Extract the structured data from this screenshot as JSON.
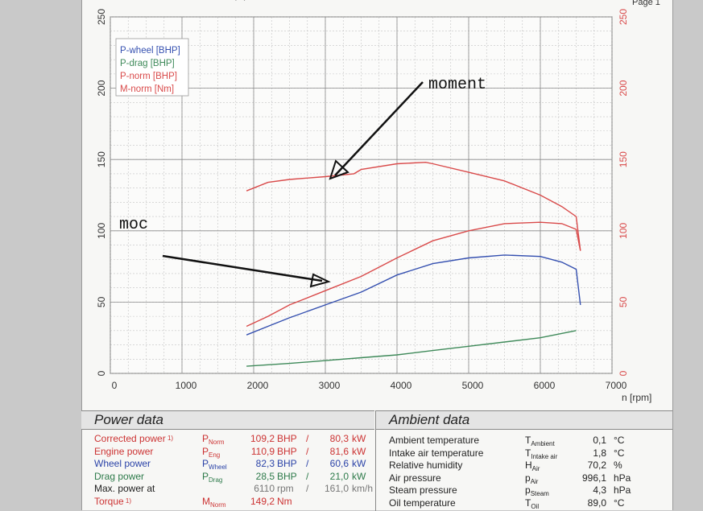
{
  "header": {
    "partial_left": "(...)",
    "partial_right": "Page 1"
  },
  "annotations": {
    "moment": "moment",
    "moc": "moc"
  },
  "chart_data": {
    "type": "line",
    "x_label": "n [rpm]",
    "x_ticks": [
      "0",
      "1000",
      "2000",
      "3000",
      "4000",
      "5000",
      "6000",
      "7000"
    ],
    "xlim": [
      0,
      7000
    ],
    "y_left_ticks": [
      "0",
      "50",
      "100",
      "150",
      "200",
      "250"
    ],
    "y_right_ticks": [
      "0",
      "50",
      "100",
      "150",
      "200",
      "250"
    ],
    "ylim": [
      0,
      250
    ],
    "grid": true,
    "legend_position": "top-left",
    "legend": [
      "P-wheel [BHP]",
      "P-drag [BHP]",
      "P-norm [BHP]",
      "M-norm [Nm]"
    ],
    "series": [
      {
        "name": "P-wheel [BHP]",
        "color": "#3550b0",
        "x": [
          1900,
          2200,
          2500,
          3000,
          3500,
          4000,
          4500,
          5000,
          5500,
          6000,
          6300,
          6500,
          6560
        ],
        "y": [
          27,
          33,
          39,
          48,
          57,
          69,
          77,
          81,
          83,
          82,
          78,
          73,
          48
        ]
      },
      {
        "name": "P-drag [BHP]",
        "color": "#3f8a5a",
        "x": [
          1900,
          2500,
          3000,
          3500,
          4000,
          4500,
          5000,
          5500,
          6000,
          6500
        ],
        "y": [
          5,
          7,
          9,
          11,
          13,
          16,
          19,
          22,
          25,
          30
        ]
      },
      {
        "name": "P-norm [BHP]",
        "color": "#d94a4a",
        "x": [
          1900,
          2200,
          2500,
          3000,
          3500,
          4000,
          4500,
          5000,
          5500,
          6000,
          6300,
          6500,
          6560
        ],
        "y": [
          33,
          40,
          48,
          58,
          68,
          81,
          93,
          100,
          105,
          106,
          105,
          101,
          86
        ]
      },
      {
        "name": "M-norm [Nm]",
        "color": "#d94a4a",
        "x": [
          1900,
          2200,
          2500,
          3000,
          3400,
          3500,
          4000,
          4400,
          4500,
          5000,
          5500,
          6000,
          6300,
          6500,
          6560
        ],
        "y": [
          128,
          134,
          136,
          138,
          140,
          143,
          147,
          148,
          147,
          141,
          135,
          125,
          117,
          110,
          86
        ]
      }
    ]
  },
  "power_data": {
    "title": "Power data",
    "rows": [
      {
        "label": "Corrected power",
        "note": "1)",
        "sym": "P",
        "sub": "Norm",
        "v1": "109,2",
        "u1": "BHP",
        "sep": "/",
        "v2": "80,3",
        "u2": "kW",
        "color": "#cc3333"
      },
      {
        "label": "Engine power",
        "note": "",
        "sym": "P",
        "sub": "Eng",
        "v1": "110,9",
        "u1": "BHP",
        "sep": "/",
        "v2": "81,6",
        "u2": "kW",
        "color": "#cc3333"
      },
      {
        "label": "Wheel power",
        "note": "",
        "sym": "P",
        "sub": "Wheel",
        "v1": "82,3",
        "u1": "BHP",
        "sep": "/",
        "v2": "60,6",
        "u2": "kW",
        "color": "#2c44a8"
      },
      {
        "label": "Drag power",
        "note": "",
        "sym": "P",
        "sub": "Drag",
        "v1": "28,5",
        "u1": "BHP",
        "sep": "/",
        "v2": "21,0",
        "u2": "kW",
        "color": "#2d7a4a"
      },
      {
        "label": "Max. power at",
        "note": "",
        "sym": "",
        "sub": "",
        "v1": "6110",
        "u1": "rpm",
        "sep": "/",
        "v2": "161,0",
        "u2": "km/h",
        "color": "#222222"
      },
      {
        "label": "Torque",
        "note": "1)",
        "sym": "M",
        "sub": "Norm",
        "v1": "149,2",
        "u1": "Nm",
        "sep": "",
        "v2": "",
        "u2": "",
        "color": "#cc3333"
      }
    ]
  },
  "ambient_data": {
    "title": "Ambient data",
    "rows": [
      {
        "label": "Ambient temperature",
        "sym": "T",
        "sub": "Ambient",
        "value": "0,1",
        "unit": "°C"
      },
      {
        "label": "Intake air temperature",
        "sym": "T",
        "sub": "Intake air",
        "value": "1,8",
        "unit": "°C"
      },
      {
        "label": "Relative humidity",
        "sym": "H",
        "sub": "Air",
        "value": "70,2",
        "unit": "%"
      },
      {
        "label": "Air pressure",
        "sym": "p",
        "sub": "Air",
        "value": "996,1",
        "unit": "hPa"
      },
      {
        "label": "Steam pressure",
        "sym": "p",
        "sub": "Steam",
        "value": "4,3",
        "unit": "hPa"
      },
      {
        "label": "Oil temperature",
        "sym": "T",
        "sub": "Oil",
        "value": "89,0",
        "unit": "°C"
      }
    ]
  }
}
